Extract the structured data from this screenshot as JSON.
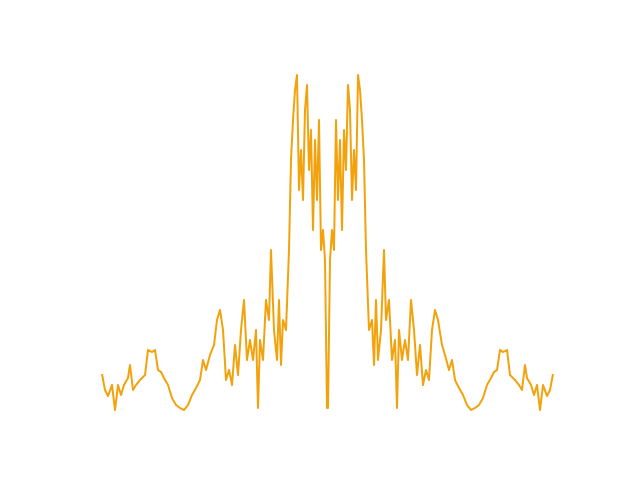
{
  "chart_data": {
    "type": "line",
    "color": "#f2a20c",
    "xlim": [
      0,
      496
    ],
    "ylim": [
      0,
      374
    ],
    "x": [
      22,
      25,
      28,
      32,
      35,
      38,
      41,
      44,
      48,
      50,
      53,
      56,
      60,
      65,
      68,
      72,
      75,
      78,
      81,
      84,
      88,
      92,
      96,
      100,
      104,
      108,
      112,
      116,
      120,
      123,
      126,
      130,
      134,
      137,
      140,
      143,
      146,
      149,
      152,
      155,
      158,
      161,
      164,
      167,
      170,
      173,
      176,
      178,
      180,
      183,
      186,
      189,
      191,
      194,
      197,
      199,
      201,
      203,
      206,
      209,
      211,
      213,
      215,
      217,
      219,
      221,
      223,
      225,
      227,
      229,
      231,
      233,
      235,
      237,
      239,
      241,
      243,
      245,
      247,
      248,
      250,
      252,
      254,
      256,
      258,
      260,
      262,
      264,
      266,
      268,
      270,
      272,
      274,
      276,
      278,
      280,
      282,
      284,
      286,
      289,
      292,
      294,
      296,
      298,
      301,
      304,
      306,
      309,
      312,
      315,
      317,
      319,
      322,
      325,
      328,
      331,
      334,
      337,
      340,
      343,
      346,
      349,
      352,
      355,
      358,
      362,
      365,
      369,
      372,
      375,
      379,
      383,
      387,
      391,
      395,
      399,
      403,
      407,
      411,
      414,
      417,
      420,
      423,
      427,
      430,
      435,
      439,
      442,
      445,
      447,
      451,
      454,
      457,
      460,
      463,
      467,
      470,
      473
    ],
    "values": [
      58,
      42,
      36,
      47,
      22,
      47,
      37,
      47,
      54,
      67,
      42,
      47,
      52,
      57,
      82,
      80,
      82,
      62,
      60,
      54,
      47,
      34,
      27,
      24,
      22,
      27,
      37,
      44,
      52,
      72,
      62,
      77,
      87,
      112,
      122,
      102,
      52,
      62,
      47,
      87,
      57,
      102,
      132,
      72,
      92,
      72,
      102,
      24,
      92,
      72,
      132,
      112,
      182,
      102,
      72,
      132,
      67,
      112,
      102,
      182,
      272,
      312,
      342,
      357,
      242,
      282,
      232,
      322,
      347,
      262,
      302,
      202,
      292,
      232,
      312,
      182,
      202,
      172,
      24,
      24,
      172,
      202,
      182,
      312,
      232,
      292,
      202,
      302,
      262,
      347,
      322,
      232,
      282,
      242,
      357,
      342,
      312,
      272,
      182,
      102,
      112,
      67,
      132,
      72,
      102,
      182,
      112,
      132,
      72,
      92,
      24,
      102,
      72,
      92,
      72,
      132,
      102,
      57,
      87,
      47,
      62,
      52,
      102,
      122,
      112,
      87,
      77,
      62,
      72,
      52,
      44,
      37,
      27,
      22,
      24,
      27,
      34,
      47,
      54,
      60,
      62,
      82,
      80,
      82,
      57,
      52,
      47,
      42,
      67,
      54,
      47,
      37,
      47,
      22,
      47,
      36,
      42,
      58
    ]
  }
}
